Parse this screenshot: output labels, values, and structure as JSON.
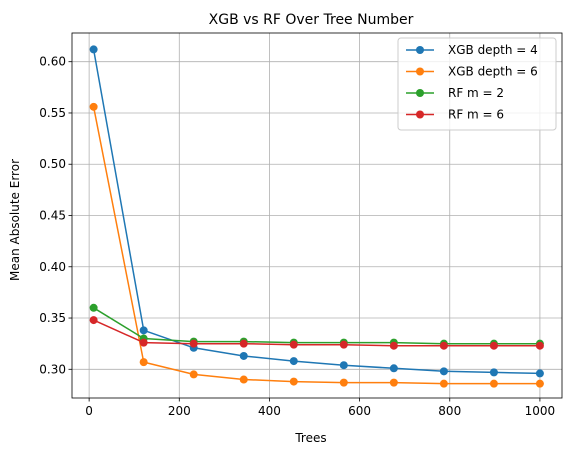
{
  "chart_data": {
    "type": "line",
    "title": "XGB vs RF Over Tree Number",
    "xlabel": "Trees",
    "ylabel": "Mean Absolute Error",
    "xlim": [
      -38,
      1049
    ],
    "ylim": [
      0.272,
      0.628
    ],
    "x": [
      10,
      121,
      232,
      343,
      454,
      565,
      676,
      787,
      898,
      1000
    ],
    "x_ticks": [
      0,
      200,
      400,
      600,
      800,
      1000
    ],
    "y_ticks": [
      0.3,
      0.35,
      0.4,
      0.45,
      0.5,
      0.55,
      0.6
    ],
    "x_tick_labels": [
      "0",
      "200",
      "400",
      "600",
      "800",
      "1000"
    ],
    "y_tick_labels": [
      "0.30",
      "0.35",
      "0.40",
      "0.45",
      "0.50",
      "0.55",
      "0.60"
    ],
    "grid": true,
    "legend_position": "top-right",
    "series": [
      {
        "name": "XGB depth = 4",
        "color": "#1f77b4",
        "values": [
          0.612,
          0.338,
          0.321,
          0.313,
          0.308,
          0.304,
          0.301,
          0.298,
          0.297,
          0.296
        ]
      },
      {
        "name": "XGB depth = 6",
        "color": "#ff7f0e",
        "values": [
          0.556,
          0.307,
          0.295,
          0.29,
          0.288,
          0.287,
          0.287,
          0.286,
          0.286,
          0.286
        ]
      },
      {
        "name": "RF m = 2",
        "color": "#2ca02c",
        "values": [
          0.36,
          0.33,
          0.327,
          0.327,
          0.326,
          0.326,
          0.326,
          0.325,
          0.325,
          0.325
        ]
      },
      {
        "name": "RF m = 6",
        "color": "#d62728",
        "values": [
          0.348,
          0.326,
          0.325,
          0.325,
          0.324,
          0.324,
          0.323,
          0.323,
          0.323,
          0.323
        ]
      }
    ]
  }
}
